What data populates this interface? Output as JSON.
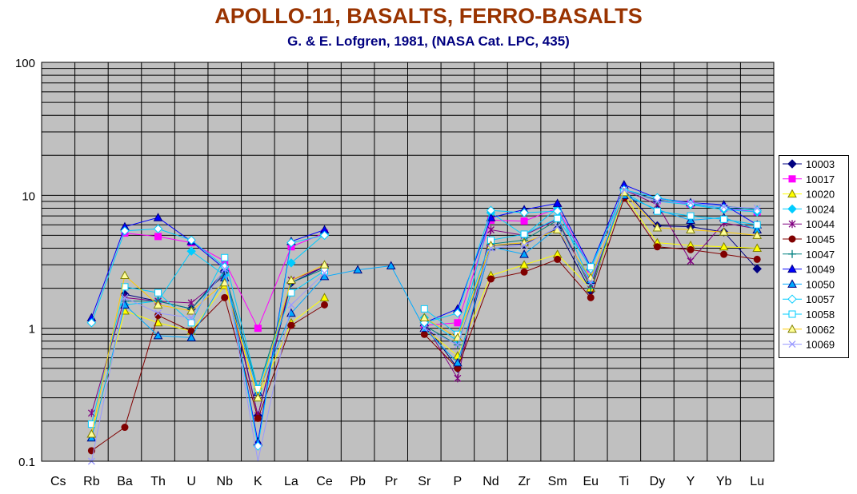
{
  "chart_data": {
    "type": "line",
    "title": "APOLLO-11, BASALTS, FERRO-BASALTS",
    "subtitle": "G. & E. Lofgren, 1981, (NASA Cat. LPC, 435)",
    "xlabel": "",
    "ylabel": "",
    "yscale": "log",
    "ylim": [
      0.1,
      100
    ],
    "ytick_labels": [
      "100",
      "10",
      "1",
      "0.1"
    ],
    "grid": true,
    "legend_position": "right",
    "plot_background": "#c0c0c0",
    "categories": [
      "Cs",
      "Rb",
      "Ba",
      "Th",
      "U",
      "Nb",
      "K",
      "La",
      "Ce",
      "Pb",
      "Pr",
      "Sr",
      "P",
      "Nd",
      "Zr",
      "Sm",
      "Eu",
      "Ti",
      "Dy",
      "Y",
      "Yb",
      "Lu"
    ],
    "series": [
      {
        "name": "10003",
        "color": "#000080",
        "marker": "diamond",
        "fill": "#000080",
        "values": [
          null,
          null,
          1.8,
          1.6,
          1.4,
          2.7,
          0.22,
          2.2,
          2.9,
          null,
          null,
          1.1,
          0.5,
          4.2,
          4.3,
          5.6,
          1.9,
          11,
          5.9,
          5.8,
          5.3,
          2.8
        ]
      },
      {
        "name": "10017",
        "color": "#ff00ff",
        "marker": "square",
        "fill": "#ff00ff",
        "values": [
          null,
          null,
          5.2,
          4.9,
          4.4,
          3.2,
          1.0,
          4.1,
          5.2,
          null,
          null,
          1.05,
          1.1,
          6.5,
          6.4,
          8.0,
          2.8,
          11,
          9.2,
          8.6,
          8.0,
          7.5
        ]
      },
      {
        "name": "10020",
        "color": "#ffff00",
        "marker": "triangle",
        "fill": "#ffff00",
        "values": [
          null,
          0.16,
          1.35,
          1.1,
          0.95,
          2.1,
          0.3,
          1.1,
          1.7,
          null,
          null,
          1.0,
          0.62,
          2.5,
          3.0,
          3.6,
          2.0,
          10,
          4.4,
          4.2,
          4.1,
          4.0
        ]
      },
      {
        "name": "10024",
        "color": "#00ccff",
        "marker": "diamond",
        "fill": "#00ccff",
        "values": [
          null,
          null,
          1.5,
          1.6,
          3.8,
          2.5,
          null,
          3.1,
          5.1,
          null,
          null,
          1.2,
          0.8,
          7.4,
          5.0,
          8.0,
          2.2,
          11,
          9.0,
          8.5,
          7.8,
          7.5
        ]
      },
      {
        "name": "10044",
        "color": "#800080",
        "marker": "star",
        "fill": "none",
        "values": [
          null,
          0.23,
          1.7,
          1.6,
          1.55,
          2.5,
          0.22,
          2.3,
          2.9,
          null,
          null,
          1.1,
          0.42,
          5.5,
          5.0,
          6.6,
          2.1,
          11,
          8.5,
          3.2,
          6.2,
          5.6
        ]
      },
      {
        "name": "10045",
        "color": "#800000",
        "marker": "circle",
        "fill": "#800000",
        "values": [
          null,
          0.12,
          0.18,
          1.25,
          0.95,
          1.7,
          0.21,
          1.05,
          1.5,
          null,
          null,
          0.9,
          0.5,
          2.35,
          2.65,
          3.3,
          1.7,
          9.5,
          4.1,
          3.9,
          3.6,
          3.3
        ]
      },
      {
        "name": "10047",
        "color": "#008080",
        "marker": "plus",
        "fill": "none",
        "values": [
          null,
          null,
          1.6,
          1.6,
          1.4,
          2.6,
          0.35,
          2.2,
          2.8,
          null,
          null,
          1.05,
          0.75,
          4.3,
          4.6,
          6.5,
          2.0,
          11,
          9.2,
          8.7,
          8.3,
          7.8
        ]
      },
      {
        "name": "10049",
        "color": "#0000ff",
        "marker": "triangle",
        "fill": "#0000ff",
        "values": [
          null,
          1.2,
          5.8,
          6.8,
          4.5,
          2.8,
          0.14,
          4.5,
          5.5,
          null,
          null,
          1.1,
          1.4,
          6.8,
          7.8,
          8.7,
          2.9,
          12,
          9.5,
          8.8,
          8.5,
          6.0
        ]
      },
      {
        "name": "10050",
        "color": "#00aaff",
        "marker": "triangle",
        "fill": "#00aaff",
        "values": [
          null,
          0.15,
          1.5,
          0.88,
          0.85,
          2.4,
          0.33,
          1.3,
          2.45,
          2.75,
          2.95,
          1.0,
          0.55,
          4.1,
          3.6,
          5.7,
          2.3,
          10,
          7.8,
          6.5,
          6.8,
          5.5
        ]
      },
      {
        "name": "10057",
        "color": "#00ccff",
        "marker": "diamond",
        "fill": "#ffffff",
        "values": [
          null,
          1.1,
          5.4,
          5.6,
          4.6,
          2.9,
          0.13,
          4.4,
          5.0,
          null,
          null,
          1.1,
          1.3,
          7.7,
          7.4,
          7.6,
          2.8,
          11,
          9.6,
          8.6,
          8.0,
          7.7
        ]
      },
      {
        "name": "10058",
        "color": "#00ccff",
        "marker": "square",
        "fill": "#ffffff",
        "values": [
          null,
          0.19,
          2.05,
          1.85,
          1.1,
          3.4,
          0.35,
          1.85,
          2.7,
          null,
          null,
          1.4,
          0.9,
          4.6,
          5.1,
          6.7,
          2.9,
          10.5,
          7.6,
          7.0,
          6.6,
          6.0
        ]
      },
      {
        "name": "10062",
        "color": "#ffcc00",
        "marker": "triangle",
        "fill": "#ffff99",
        "values": [
          null,
          0.16,
          2.5,
          1.5,
          1.35,
          2.2,
          0.3,
          2.3,
          3.0,
          null,
          null,
          1.2,
          0.85,
          4.2,
          4.4,
          5.5,
          2.4,
          10.5,
          5.7,
          5.5,
          5.3,
          5.0
        ]
      },
      {
        "name": "10069",
        "color": "#9999ff",
        "marker": "x",
        "fill": "none",
        "values": [
          null,
          0.1,
          1.7,
          1.3,
          1.2,
          2.8,
          0.06,
          1.5,
          2.6,
          null,
          null,
          1.0,
          0.75,
          4.0,
          4.2,
          5.8,
          2.2,
          11,
          9.0,
          8.8,
          8.2,
          8.0
        ]
      }
    ]
  }
}
